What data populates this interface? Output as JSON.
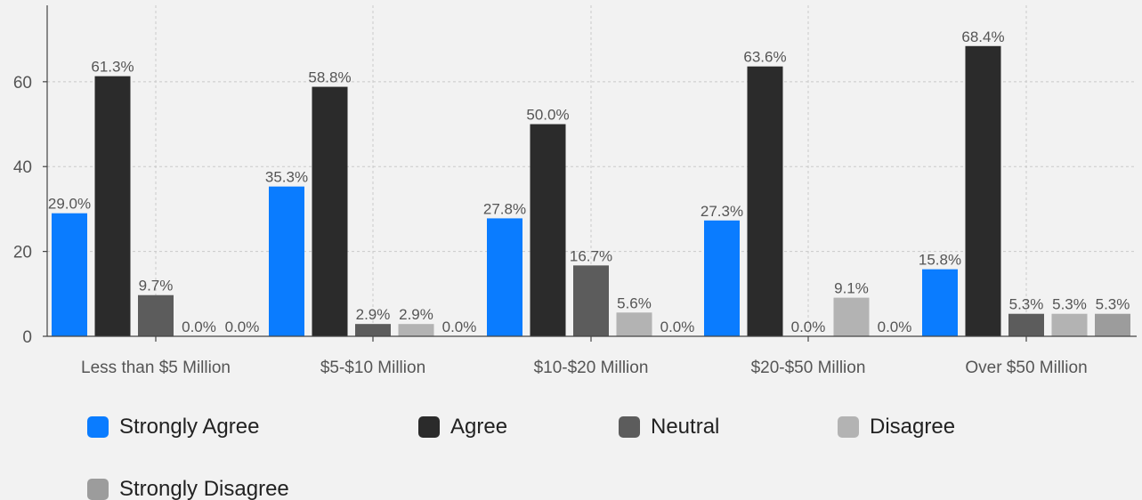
{
  "chart_data": {
    "type": "bar",
    "categories": [
      "Less than $5 Million",
      "$5-$10 Million",
      "$10-$20 Million",
      "$20-$50 Million",
      "Over $50 Million"
    ],
    "series": [
      {
        "name": "Strongly Agree",
        "color": "#0a7cff",
        "values": [
          29.0,
          35.3,
          27.8,
          27.3,
          15.8
        ],
        "labels": [
          "29.0%",
          "35.3%",
          "27.8%",
          "27.3%",
          "15.8%"
        ]
      },
      {
        "name": "Agree",
        "color": "#2b2b2b",
        "values": [
          61.3,
          58.8,
          50.0,
          63.6,
          68.4
        ],
        "labels": [
          "61.3%",
          "58.8%",
          "50.0%",
          "63.6%",
          "68.4%"
        ]
      },
      {
        "name": "Neutral",
        "color": "#5c5c5c",
        "values": [
          9.7,
          2.9,
          16.7,
          0.0,
          5.3
        ],
        "labels": [
          "9.7%",
          "2.9%",
          "16.7%",
          "0.0%",
          "5.3%"
        ]
      },
      {
        "name": "Disagree",
        "color": "#b3b3b3",
        "values": [
          0.0,
          2.9,
          5.6,
          9.1,
          5.3
        ],
        "labels": [
          "0.0%",
          "2.9%",
          "5.6%",
          "9.1%",
          "5.3%"
        ]
      },
      {
        "name": "Strongly Disagree",
        "color": "#9c9c9c",
        "values": [
          0.0,
          0.0,
          0.0,
          0.0,
          5.3
        ],
        "labels": [
          "0.0%",
          "0.0%",
          "0.0%",
          "0.0%",
          "5.3%"
        ]
      }
    ],
    "y_ticks": [
      0,
      20,
      40,
      60
    ],
    "ylim": [
      0,
      78
    ],
    "title": "",
    "xlabel": "",
    "ylabel": "",
    "grid": true,
    "legend_position": "bottom-left"
  }
}
